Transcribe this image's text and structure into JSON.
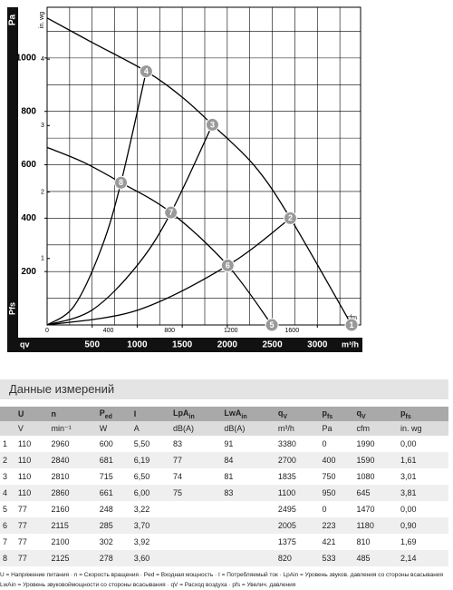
{
  "chart_data": {
    "type": "line",
    "y_label": "Pa",
    "y_axis_name": "Pfs",
    "x_axis_name": "qv",
    "x_label": "m³/h",
    "y2_label": "in. wg",
    "x2_label": "cfm",
    "xlim": [
      0,
      3480
    ],
    "ylim": [
      0,
      1190
    ],
    "y2lim": [
      0,
      4.78
    ],
    "x2lim": [
      0,
      2048
    ],
    "xticks": [
      500,
      1000,
      1500,
      2000,
      2500,
      3000
    ],
    "yticks": [
      200,
      400,
      600,
      800,
      1000
    ],
    "y2ticks": [
      1,
      2,
      3,
      4
    ],
    "x2ticks": [
      0,
      400,
      800,
      1200,
      1600
    ],
    "xgrid": [
      250,
      500,
      750,
      1000,
      1250,
      1500,
      1750,
      2000,
      2250,
      2500,
      2750,
      3000,
      3250
    ],
    "ygrid": [
      100,
      200,
      300,
      400,
      500,
      600,
      700,
      800,
      900,
      1000,
      1100
    ],
    "color": "#000000",
    "point_color": "#999999",
    "series": [
      {
        "x": [
          0,
          500,
          1100,
          1500,
          1835,
          2300,
          2700,
          3380
        ],
        "values": [
          1150,
          1058,
          950,
          853,
          750,
          597,
          400,
          0
        ]
      },
      {
        "x": [
          0,
          400,
          820,
          1375,
          2005,
          2495
        ],
        "values": [
          665,
          610,
          533,
          421,
          223,
          0
        ]
      },
      {
        "x": [
          0,
          300,
          600,
          820,
          1100
        ],
        "values": [
          0,
          71,
          285,
          533,
          950
        ]
      },
      {
        "x": [
          0,
          500,
          1000,
          1375,
          1835
        ],
        "values": [
          0,
          56,
          223,
          421,
          750
        ]
      },
      {
        "x": [
          0,
          1000,
          2005,
          2700
        ],
        "values": [
          0,
          55,
          223,
          400
        ]
      }
    ],
    "points": [
      {
        "label": "1",
        "x": 3380,
        "y": 0
      },
      {
        "label": "2",
        "x": 2700,
        "y": 400
      },
      {
        "label": "3",
        "x": 1835,
        "y": 750
      },
      {
        "label": "4",
        "x": 1100,
        "y": 950
      },
      {
        "label": "5",
        "x": 2495,
        "y": 0
      },
      {
        "label": "6",
        "x": 2005,
        "y": 223
      },
      {
        "label": "7",
        "x": 1375,
        "y": 421
      },
      {
        "label": "8",
        "x": 820,
        "y": 533
      }
    ]
  },
  "table": {
    "title": "Данные измерений",
    "header": [
      {
        "t": "U"
      },
      {
        "t": "n"
      },
      {
        "t": "P",
        "sub": "ed"
      },
      {
        "t": "I"
      },
      {
        "t": "LpA",
        "sub": "in"
      },
      {
        "t": "LwA",
        "sub": "in"
      },
      {
        "t": "q",
        "sub": "V"
      },
      {
        "t": "p",
        "sub": "fs"
      },
      {
        "t": "q",
        "sub": "V"
      },
      {
        "t": "p",
        "sub": "fs"
      }
    ],
    "units": [
      "V",
      "min⁻¹",
      "W",
      "A",
      "dB(A)",
      "dB(A)",
      "m³/h",
      "Pa",
      "cfm",
      "in. wg"
    ],
    "rows": [
      [
        "1",
        "110",
        "2960",
        "600",
        "5,50",
        "83",
        "91",
        "3380",
        "0",
        "1990",
        "0,00"
      ],
      [
        "2",
        "110",
        "2840",
        "681",
        "6,19",
        "77",
        "84",
        "2700",
        "400",
        "1590",
        "1,61"
      ],
      [
        "3",
        "110",
        "2810",
        "715",
        "6,50",
        "74",
        "81",
        "1835",
        "750",
        "1080",
        "3,01"
      ],
      [
        "4",
        "110",
        "2860",
        "661",
        "6,00",
        "75",
        "83",
        "1100",
        "950",
        "645",
        "3,81"
      ],
      [
        "5",
        "77",
        "2160",
        "248",
        "3,22",
        null,
        null,
        "2495",
        "0",
        "1470",
        "0,00"
      ],
      [
        "6",
        "77",
        "2115",
        "285",
        "3,70",
        null,
        null,
        "2005",
        "223",
        "1180",
        "0,90"
      ],
      [
        "7",
        "77",
        "2100",
        "302",
        "3,92",
        null,
        null,
        "1375",
        "421",
        "810",
        "1,69"
      ],
      [
        "8",
        "77",
        "2125",
        "278",
        "3,60",
        null,
        null,
        "820",
        "533",
        "485",
        "2,14"
      ]
    ],
    "notes": [
      "U = Напряжение питания · n = Скорость вращения · Ped = Входная мощность · I = Потребляемый ток · LpAin = Уровень звуков. давления со стороны всасывания",
      "LwAin = Уровень звуковоймощности со стороны всасывания · qV = Расход воздуха · pfs = Увелич. давления"
    ]
  }
}
